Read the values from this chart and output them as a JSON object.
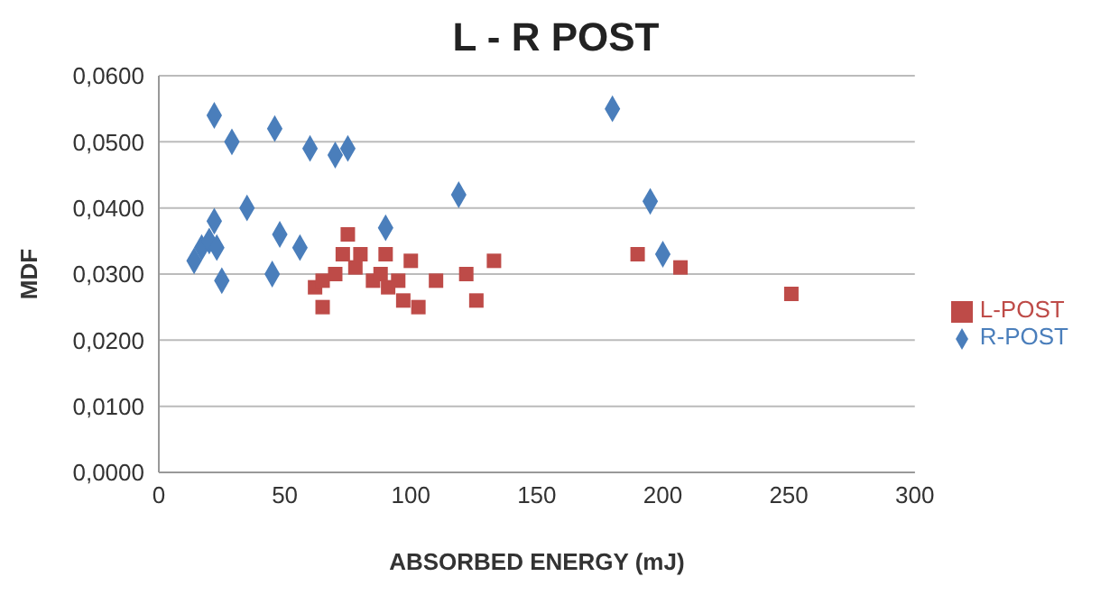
{
  "chart_data": {
    "type": "scatter",
    "title": "L - R POST",
    "xlabel": "ABSORBED ENERGY (mJ)",
    "ylabel": "MDF",
    "xlim": [
      0,
      300
    ],
    "xticks": [
      0,
      50,
      100,
      150,
      200,
      250,
      300
    ],
    "ylim": [
      0,
      0.06
    ],
    "yticks": [
      {
        "value": 0,
        "label": "0,0000"
      },
      {
        "value": 0.01,
        "label": "0,0100"
      },
      {
        "value": 0.02,
        "label": "0,0200"
      },
      {
        "value": 0.03,
        "label": "0,0300"
      },
      {
        "value": 0.04,
        "label": "0,0400"
      },
      {
        "value": 0.05,
        "label": "0,0500"
      },
      {
        "value": 0.06,
        "label": "0,0600"
      }
    ],
    "grid": "y",
    "legend": "right",
    "series": [
      {
        "name": "R-POST",
        "color": "#4a7ebb",
        "marker": "diamond",
        "x": [
          14,
          17,
          20,
          22,
          22,
          23,
          25,
          29,
          35,
          45,
          46,
          48,
          56,
          60,
          70,
          75,
          90,
          119,
          180,
          195,
          200
        ],
        "values": [
          0.032,
          0.034,
          0.035,
          0.038,
          0.054,
          0.034,
          0.029,
          0.05,
          0.04,
          0.03,
          0.052,
          0.036,
          0.034,
          0.049,
          0.048,
          0.049,
          0.037,
          0.042,
          0.055,
          0.041,
          0.033
        ]
      },
      {
        "name": "L-POST",
        "color": "#be4b48",
        "marker": "square",
        "x": [
          62,
          65,
          65,
          70,
          73,
          75,
          78,
          80,
          85,
          88,
          90,
          91,
          95,
          97,
          100,
          103,
          110,
          122,
          126,
          133,
          190,
          207,
          251
        ],
        "values": [
          0.028,
          0.025,
          0.029,
          0.03,
          0.033,
          0.036,
          0.031,
          0.033,
          0.029,
          0.03,
          0.033,
          0.028,
          0.029,
          0.026,
          0.032,
          0.025,
          0.029,
          0.03,
          0.026,
          0.032,
          0.033,
          0.031,
          0.027
        ]
      }
    ]
  }
}
